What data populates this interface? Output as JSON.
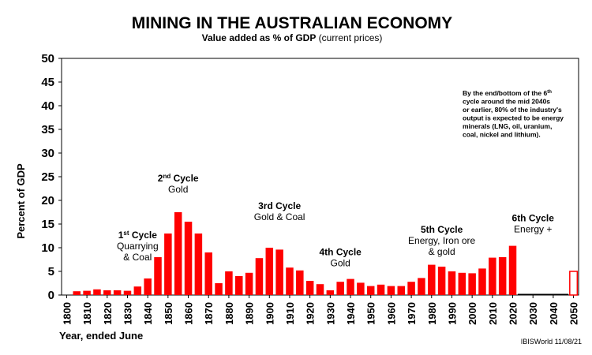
{
  "chart_data": {
    "type": "bar",
    "title": "MINING IN THE AUSTRALIAN ECONOMY",
    "subtitle_bold": "Value added as % of GDP",
    "subtitle_rest": " (current prices)",
    "ylabel": "Percent of GDP",
    "xlabel": "Year, ended June",
    "ylim": [
      0,
      50
    ],
    "yticks": [
      0,
      5,
      10,
      15,
      20,
      25,
      30,
      35,
      40,
      45,
      50
    ],
    "xticks": [
      1800,
      1810,
      1820,
      1830,
      1840,
      1850,
      1860,
      1870,
      1880,
      1890,
      1900,
      1910,
      1920,
      1930,
      1940,
      1950,
      1960,
      1970,
      1980,
      1990,
      2000,
      2010,
      2020,
      2030,
      2040,
      2050
    ],
    "bar_color": "#ff0000",
    "projected_color": "#ff0000",
    "categories": [
      1805,
      1810,
      1815,
      1820,
      1825,
      1830,
      1835,
      1840,
      1845,
      1850,
      1855,
      1860,
      1865,
      1870,
      1875,
      1880,
      1885,
      1890,
      1895,
      1900,
      1905,
      1910,
      1915,
      1920,
      1925,
      1930,
      1935,
      1940,
      1945,
      1950,
      1955,
      1960,
      1965,
      1970,
      1975,
      1980,
      1985,
      1990,
      1995,
      2000,
      2005,
      2010,
      2015,
      2020
    ],
    "values": [
      0.8,
      0.9,
      1.2,
      1.0,
      1.0,
      0.9,
      1.8,
      3.5,
      8.0,
      13.0,
      17.5,
      15.5,
      13.0,
      9.0,
      2.5,
      5.0,
      4.0,
      4.7,
      7.8,
      10.0,
      9.6,
      5.8,
      5.2,
      3.0,
      2.3,
      1.0,
      2.8,
      3.4,
      2.6,
      1.9,
      2.2,
      1.9,
      1.9,
      2.8,
      3.6,
      6.4,
      6.0,
      5.0,
      4.7,
      4.6,
      5.6,
      7.9,
      8.0,
      10.4
    ],
    "projected": {
      "year": 2050,
      "value": 5.0
    },
    "annotations": [
      {
        "year": 1835,
        "value": 12.0,
        "cycle": "1",
        "sup": "st",
        "head_rest": " Cycle",
        "lines": [
          "Quarrying",
          "& Coal"
        ]
      },
      {
        "year": 1855,
        "value": 24.0,
        "cycle": "2",
        "sup": "nd",
        "head_rest": " Cycle",
        "lines": [
          "Gold"
        ]
      },
      {
        "year": 1905,
        "value": 18.2,
        "cycle": "",
        "sup": "",
        "head_rest": "3rd Cycle",
        "lines": [
          "Gold & Coal"
        ]
      },
      {
        "year": 1935,
        "value": 8.4,
        "cycle": "",
        "sup": "",
        "head_rest": "4th Cycle",
        "lines": [
          "Gold"
        ]
      },
      {
        "year": 1985,
        "value": 13.2,
        "cycle": "",
        "sup": "",
        "head_rest": "5th Cycle",
        "lines": [
          "Energy, Iron ore",
          "& gold"
        ]
      },
      {
        "year": 2030,
        "value": 15.6,
        "cycle": "",
        "sup": "",
        "head_rest": "6th Cycle",
        "lines": [
          "Energy +"
        ]
      }
    ],
    "note_lines": [
      "By the end/bottom of the 6th",
      "cycle around the mid 2040s",
      "or earlier, 80% of the industry's",
      "output is expected to be energy",
      "minerals (LNG, oil, uranium,",
      "coal, nickel and lithium)."
    ],
    "credit": "IBISWorld  11/08/21"
  }
}
